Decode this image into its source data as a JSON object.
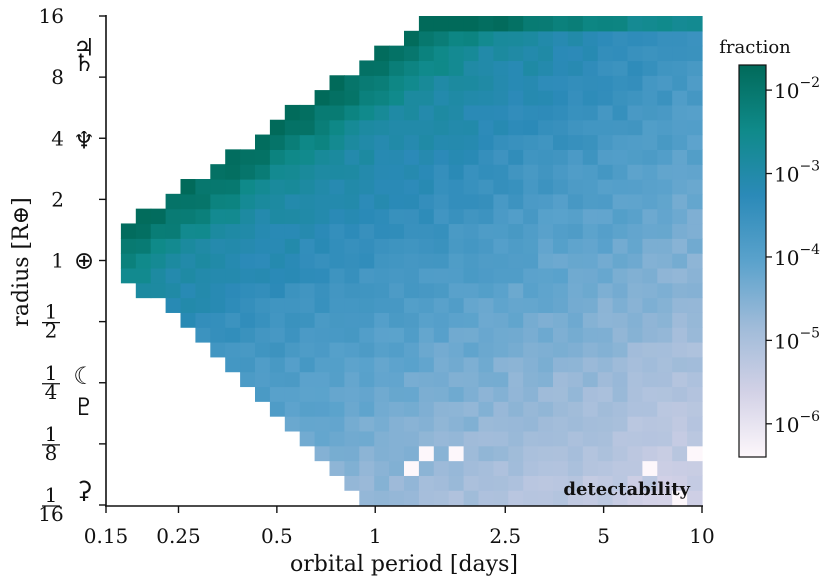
{
  "chart_data": {
    "type": "heatmap",
    "title": "",
    "xlabel": "orbital period [days]",
    "ylabel": "radius [R⊕]",
    "x_scale": "log",
    "y_scale": "log",
    "xlim": [
      0.15,
      10
    ],
    "ylim": [
      0.0625,
      16
    ],
    "x_ticks": [
      0.15,
      0.25,
      0.5,
      1,
      2.5,
      5,
      10
    ],
    "x_tick_labels": [
      "0.15",
      "0.25",
      "0.5",
      "1",
      "2.5",
      "5",
      "10"
    ],
    "y_ticks": [
      16,
      8,
      4,
      2,
      1,
      0.5,
      0.25,
      0.125,
      0.0625
    ],
    "y_tick_labels": [
      {
        "value": 16,
        "whole": "16"
      },
      {
        "value": 8,
        "whole": "8"
      },
      {
        "value": 4,
        "whole": "4"
      },
      {
        "value": 2,
        "whole": "2"
      },
      {
        "value": 1,
        "whole": "1"
      },
      {
        "value": 0.5,
        "num": "1",
        "den": "2"
      },
      {
        "value": 0.25,
        "num": "1",
        "den": "4"
      },
      {
        "value": 0.125,
        "num": "1",
        "den": "8"
      },
      {
        "value": 0.0625,
        "num": "1",
        "den": "16"
      }
    ],
    "grid": false,
    "planet_markers": [
      {
        "name": "jupiter-icon",
        "glyph": "♃",
        "radius": 11.2
      },
      {
        "name": "saturn-icon",
        "glyph": "♄",
        "radius": 9.4
      },
      {
        "name": "neptune-icon",
        "glyph": "♆",
        "radius": 3.9
      },
      {
        "name": "earth-icon",
        "glyph": "⊕",
        "radius": 1.0
      },
      {
        "name": "moon-icon",
        "glyph": "☾",
        "radius": 0.27
      },
      {
        "name": "pluto-icon",
        "glyph": "♇",
        "radius": 0.19
      },
      {
        "name": "ceres-icon",
        "glyph": "⚳",
        "radius": 0.074
      }
    ],
    "annotation": "detectability",
    "colorbar": {
      "label": "fraction",
      "scale": "log",
      "range": [
        4e-07,
        0.02
      ],
      "ticks": [
        {
          "value": 0.01,
          "mantissa": "10",
          "exp": "−2"
        },
        {
          "value": 0.001,
          "mantissa": "10",
          "exp": "−3"
        },
        {
          "value": 0.0001,
          "mantissa": "10",
          "exp": "−4"
        },
        {
          "value": 1e-05,
          "mantissa": "10",
          "exp": "−5"
        },
        {
          "value": 1e-06,
          "mantissa": "10",
          "exp": "−6"
        }
      ],
      "colormap": [
        "#fdf7fb",
        "#d2d1e6",
        "#9fbbd9",
        "#5aa2cc",
        "#2b8ab8",
        "#0f8a8a",
        "#016a5a"
      ]
    },
    "grid_bins": {
      "n_period_bins": 40,
      "n_radius_bins": 33,
      "period_range": [
        0.15,
        10
      ],
      "radius_range": [
        0.0625,
        16
      ],
      "fraction_model": "log10(fraction) ranges from about -6.6 (small planets at long periods) to about -2.0 (large planets at short periods); no coverage in the upper-left (short period, large radius) and bottom-left corners"
    }
  }
}
